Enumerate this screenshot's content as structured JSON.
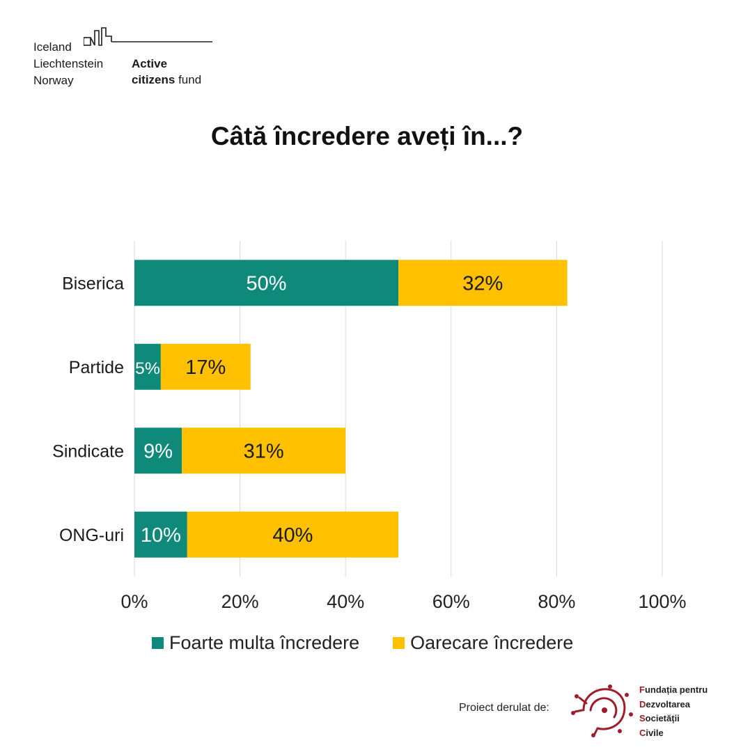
{
  "logo": {
    "countries": [
      "Iceland",
      "Liechtenstein",
      "Norway"
    ],
    "fund_line1": "Active",
    "fund_line2_bold": "citizens",
    "fund_line2_rest": " fund"
  },
  "title": "Câtă încredere aveți în...?",
  "colors": {
    "series1": "#0f8a7a",
    "series2": "#ffc000",
    "grid": "#d9d9d9",
    "accent": "#a01c2a"
  },
  "chart_data": {
    "type": "bar",
    "orientation": "horizontal",
    "stacked": true,
    "categories": [
      "Biserica",
      "Partide",
      "Sindicate",
      "ONG-uri"
    ],
    "series": [
      {
        "name": "Foarte multa încredere",
        "values": [
          50,
          5,
          9,
          10
        ],
        "labels": [
          "50%",
          "5%",
          "9%",
          "10%"
        ]
      },
      {
        "name": "Oarecare încredere",
        "values": [
          32,
          17,
          31,
          40
        ],
        "labels": [
          "32%",
          "17%",
          "31%",
          "40%"
        ]
      }
    ],
    "xlim": [
      0,
      100
    ],
    "xticks": [
      "0%",
      "20%",
      "40%",
      "60%",
      "80%",
      "100%"
    ],
    "grid": true,
    "legend_position": "bottom"
  },
  "footer": {
    "project_text": "Proiect derulat de:",
    "org_lines": [
      {
        "cap": "F",
        "rest": "undația pentru"
      },
      {
        "cap": "D",
        "rest": "ezvoltarea"
      },
      {
        "cap": "S",
        "rest": "ocietății"
      },
      {
        "cap": "C",
        "rest": "ivile"
      }
    ]
  }
}
